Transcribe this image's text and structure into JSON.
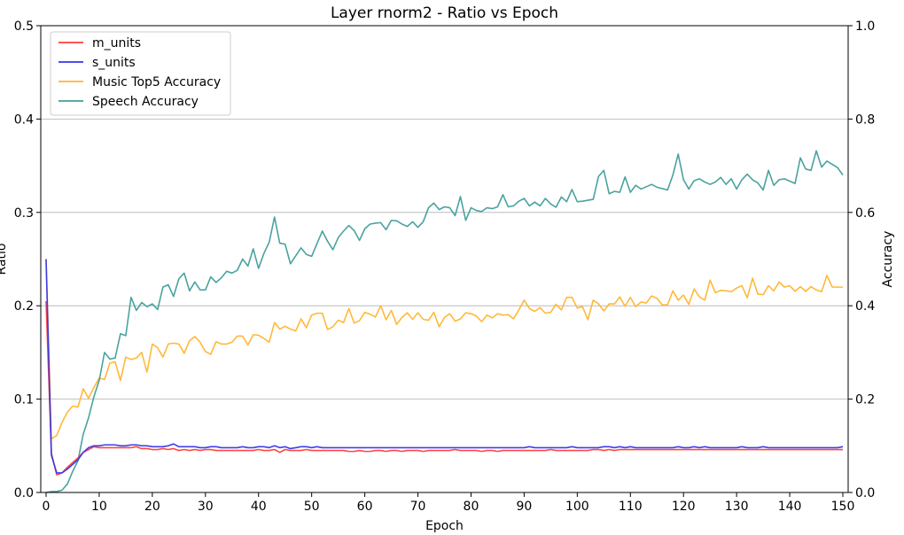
{
  "chart_data": {
    "type": "line",
    "title": "Layer rnorm2 - Ratio vs Epoch",
    "xlabel": "Epoch",
    "ylabel_left": "Ratio",
    "ylabel_right": "Accuracy",
    "xlim": [
      -1,
      151
    ],
    "ylim_left": [
      0,
      0.5
    ],
    "ylim_right": [
      0,
      1.0
    ],
    "xticks": [
      0,
      10,
      20,
      30,
      40,
      50,
      60,
      70,
      80,
      90,
      100,
      110,
      120,
      130,
      140,
      150
    ],
    "yticks_left": [
      0.0,
      0.1,
      0.2,
      0.3,
      0.4,
      0.5
    ],
    "yticks_right": [
      0.0,
      0.2,
      0.4,
      0.6,
      0.8,
      1.0
    ],
    "yticks_left_labels": [
      "0.0",
      "0.1",
      "0.2",
      "0.3",
      "0.4",
      "0.5"
    ],
    "yticks_right_labels": [
      "0.0",
      "0.2",
      "0.4",
      "0.6",
      "0.8",
      "1.0"
    ],
    "grid": "horizontal (right axis)",
    "legend_position": "top-left",
    "x": [
      0,
      1,
      2,
      3,
      4,
      5,
      6,
      7,
      8,
      9,
      10,
      11,
      12,
      13,
      14,
      15,
      16,
      17,
      18,
      19,
      20,
      21,
      22,
      23,
      24,
      25,
      26,
      27,
      28,
      29,
      30,
      31,
      32,
      33,
      34,
      35,
      36,
      37,
      38,
      39,
      40,
      41,
      42,
      43,
      44,
      45,
      46,
      47,
      48,
      49,
      50,
      51,
      52,
      53,
      54,
      55,
      56,
      57,
      58,
      59,
      60,
      61,
      62,
      63,
      64,
      65,
      66,
      67,
      68,
      69,
      70,
      71,
      72,
      73,
      74,
      75,
      76,
      77,
      78,
      79,
      80,
      81,
      82,
      83,
      84,
      85,
      86,
      87,
      88,
      89,
      90,
      91,
      92,
      93,
      94,
      95,
      96,
      97,
      98,
      99,
      100,
      101,
      102,
      103,
      104,
      105,
      106,
      107,
      108,
      109,
      110,
      111,
      112,
      113,
      114,
      115,
      116,
      117,
      118,
      119,
      120,
      121,
      122,
      123,
      124,
      125,
      126,
      127,
      128,
      129,
      130,
      131,
      132,
      133,
      134,
      135,
      136,
      137,
      138,
      139,
      140,
      141,
      142,
      143,
      144,
      145,
      146,
      147,
      148,
      149,
      150
    ],
    "series": [
      {
        "name": "m_units",
        "axis": "left",
        "color": "#ff3b3b",
        "values": [
          0.205,
          0.042,
          0.019,
          0.021,
          0.027,
          0.032,
          0.037,
          0.043,
          0.046,
          0.049,
          0.048,
          0.048,
          0.048,
          0.048,
          0.048,
          0.048,
          0.048,
          0.049,
          0.047,
          0.047,
          0.046,
          0.046,
          0.047,
          0.046,
          0.047,
          0.045,
          0.046,
          0.045,
          0.046,
          0.045,
          0.046,
          0.046,
          0.045,
          0.045,
          0.045,
          0.045,
          0.045,
          0.045,
          0.045,
          0.045,
          0.046,
          0.045,
          0.045,
          0.046,
          0.043,
          0.046,
          0.045,
          0.045,
          0.045,
          0.046,
          0.045,
          0.045,
          0.045,
          0.045,
          0.045,
          0.045,
          0.045,
          0.044,
          0.044,
          0.045,
          0.044,
          0.044,
          0.045,
          0.045,
          0.044,
          0.045,
          0.045,
          0.044,
          0.045,
          0.045,
          0.045,
          0.044,
          0.045,
          0.045,
          0.045,
          0.045,
          0.045,
          0.046,
          0.045,
          0.045,
          0.045,
          0.045,
          0.044,
          0.045,
          0.045,
          0.044,
          0.045,
          0.045,
          0.045,
          0.045,
          0.045,
          0.045,
          0.045,
          0.045,
          0.045,
          0.046,
          0.045,
          0.045,
          0.045,
          0.045,
          0.045,
          0.045,
          0.045,
          0.046,
          0.046,
          0.045,
          0.046,
          0.045,
          0.046,
          0.046,
          0.046,
          0.046,
          0.046,
          0.046,
          0.046,
          0.046,
          0.046,
          0.046,
          0.046,
          0.046,
          0.046,
          0.046,
          0.046,
          0.046,
          0.046,
          0.046,
          0.046,
          0.046,
          0.046,
          0.046,
          0.046,
          0.046,
          0.046,
          0.046,
          0.046,
          0.046,
          0.046,
          0.046,
          0.046,
          0.046,
          0.046,
          0.046,
          0.046,
          0.046,
          0.046,
          0.046,
          0.046,
          0.046,
          0.046,
          0.046,
          0.046
        ]
      },
      {
        "name": "s_units",
        "axis": "left",
        "color": "#3535e8",
        "values": [
          0.25,
          0.04,
          0.021,
          0.021,
          0.025,
          0.03,
          0.035,
          0.043,
          0.048,
          0.05,
          0.05,
          0.051,
          0.051,
          0.051,
          0.05,
          0.05,
          0.051,
          0.051,
          0.05,
          0.05,
          0.049,
          0.049,
          0.049,
          0.05,
          0.052,
          0.049,
          0.049,
          0.049,
          0.049,
          0.048,
          0.048,
          0.049,
          0.049,
          0.048,
          0.048,
          0.048,
          0.048,
          0.049,
          0.048,
          0.048,
          0.049,
          0.049,
          0.048,
          0.05,
          0.048,
          0.049,
          0.047,
          0.048,
          0.049,
          0.049,
          0.048,
          0.049,
          0.048,
          0.048,
          0.048,
          0.048,
          0.048,
          0.048,
          0.048,
          0.048,
          0.048,
          0.048,
          0.048,
          0.048,
          0.048,
          0.048,
          0.048,
          0.048,
          0.048,
          0.048,
          0.048,
          0.048,
          0.048,
          0.048,
          0.048,
          0.048,
          0.048,
          0.048,
          0.048,
          0.048,
          0.048,
          0.048,
          0.048,
          0.048,
          0.048,
          0.048,
          0.048,
          0.048,
          0.048,
          0.048,
          0.048,
          0.049,
          0.048,
          0.048,
          0.048,
          0.048,
          0.048,
          0.048,
          0.048,
          0.049,
          0.048,
          0.048,
          0.048,
          0.048,
          0.048,
          0.049,
          0.049,
          0.048,
          0.049,
          0.048,
          0.049,
          0.048,
          0.048,
          0.048,
          0.048,
          0.048,
          0.048,
          0.048,
          0.048,
          0.049,
          0.048,
          0.048,
          0.049,
          0.048,
          0.049,
          0.048,
          0.048,
          0.048,
          0.048,
          0.048,
          0.048,
          0.049,
          0.048,
          0.048,
          0.048,
          0.049,
          0.048,
          0.048,
          0.048,
          0.048,
          0.048,
          0.048,
          0.048,
          0.048,
          0.048,
          0.048,
          0.048,
          0.048,
          0.048,
          0.048,
          0.049
        ]
      },
      {
        "name": "Music Top5 Accuracy",
        "axis": "right",
        "color": "#ffb52e",
        "values": [
          0.5,
          0.115,
          0.122,
          0.15,
          0.172,
          0.185,
          0.183,
          0.222,
          0.202,
          0.225,
          0.245,
          0.242,
          0.277,
          0.28,
          0.24,
          0.29,
          0.285,
          0.288,
          0.3,
          0.258,
          0.318,
          0.31,
          0.29,
          0.318,
          0.32,
          0.318,
          0.298,
          0.325,
          0.334,
          0.322,
          0.302,
          0.296,
          0.323,
          0.318,
          0.318,
          0.322,
          0.335,
          0.335,
          0.316,
          0.338,
          0.337,
          0.33,
          0.322,
          0.364,
          0.35,
          0.356,
          0.35,
          0.346,
          0.372,
          0.353,
          0.38,
          0.384,
          0.384,
          0.349,
          0.355,
          0.369,
          0.364,
          0.394,
          0.363,
          0.368,
          0.386,
          0.382,
          0.376,
          0.4,
          0.37,
          0.39,
          0.36,
          0.375,
          0.385,
          0.371,
          0.385,
          0.371,
          0.369,
          0.386,
          0.355,
          0.375,
          0.383,
          0.367,
          0.372,
          0.385,
          0.383,
          0.378,
          0.366,
          0.38,
          0.374,
          0.383,
          0.38,
          0.381,
          0.372,
          0.391,
          0.412,
          0.394,
          0.388,
          0.396,
          0.384,
          0.386,
          0.403,
          0.391,
          0.418,
          0.418,
          0.395,
          0.398,
          0.37,
          0.412,
          0.404,
          0.389,
          0.404,
          0.404,
          0.419,
          0.399,
          0.418,
          0.398,
          0.408,
          0.406,
          0.421,
          0.416,
          0.402,
          0.402,
          0.432,
          0.412,
          0.423,
          0.403,
          0.436,
          0.419,
          0.412,
          0.455,
          0.428,
          0.433,
          0.432,
          0.43,
          0.438,
          0.443,
          0.417,
          0.459,
          0.425,
          0.424,
          0.443,
          0.432,
          0.451,
          0.44,
          0.443,
          0.431,
          0.441,
          0.431,
          0.441,
          0.434,
          0.43,
          0.465,
          0.44,
          0.44,
          0.44
        ]
      },
      {
        "name": "Speech Accuracy",
        "axis": "right",
        "color": "#3f9e9a",
        "values": [
          0.0,
          0.002,
          0.002,
          0.005,
          0.018,
          0.045,
          0.068,
          0.125,
          0.16,
          0.205,
          0.24,
          0.3,
          0.286,
          0.288,
          0.34,
          0.336,
          0.418,
          0.39,
          0.407,
          0.398,
          0.404,
          0.392,
          0.44,
          0.445,
          0.42,
          0.458,
          0.47,
          0.432,
          0.451,
          0.434,
          0.434,
          0.462,
          0.45,
          0.46,
          0.474,
          0.47,
          0.476,
          0.5,
          0.485,
          0.522,
          0.48,
          0.512,
          0.536,
          0.59,
          0.534,
          0.532,
          0.49,
          0.507,
          0.524,
          0.51,
          0.506,
          0.533,
          0.56,
          0.538,
          0.52,
          0.546,
          0.56,
          0.572,
          0.561,
          0.54,
          0.565,
          0.575,
          0.577,
          0.578,
          0.563,
          0.583,
          0.582,
          0.575,
          0.57,
          0.58,
          0.568,
          0.58,
          0.61,
          0.62,
          0.606,
          0.612,
          0.61,
          0.593,
          0.634,
          0.583,
          0.61,
          0.604,
          0.602,
          0.61,
          0.608,
          0.612,
          0.638,
          0.612,
          0.614,
          0.624,
          0.63,
          0.614,
          0.622,
          0.614,
          0.63,
          0.618,
          0.611,
          0.633,
          0.623,
          0.649,
          0.623,
          0.624,
          0.626,
          0.628,
          0.677,
          0.69,
          0.64,
          0.645,
          0.643,
          0.676,
          0.643,
          0.658,
          0.65,
          0.655,
          0.66,
          0.654,
          0.651,
          0.648,
          0.68,
          0.725,
          0.67,
          0.65,
          0.668,
          0.672,
          0.665,
          0.66,
          0.665,
          0.675,
          0.66,
          0.672,
          0.65,
          0.67,
          0.682,
          0.67,
          0.663,
          0.648,
          0.69,
          0.658,
          0.67,
          0.672,
          0.667,
          0.662,
          0.717,
          0.693,
          0.69,
          0.732,
          0.697,
          0.71,
          0.703,
          0.696,
          0.68
        ]
      }
    ]
  }
}
